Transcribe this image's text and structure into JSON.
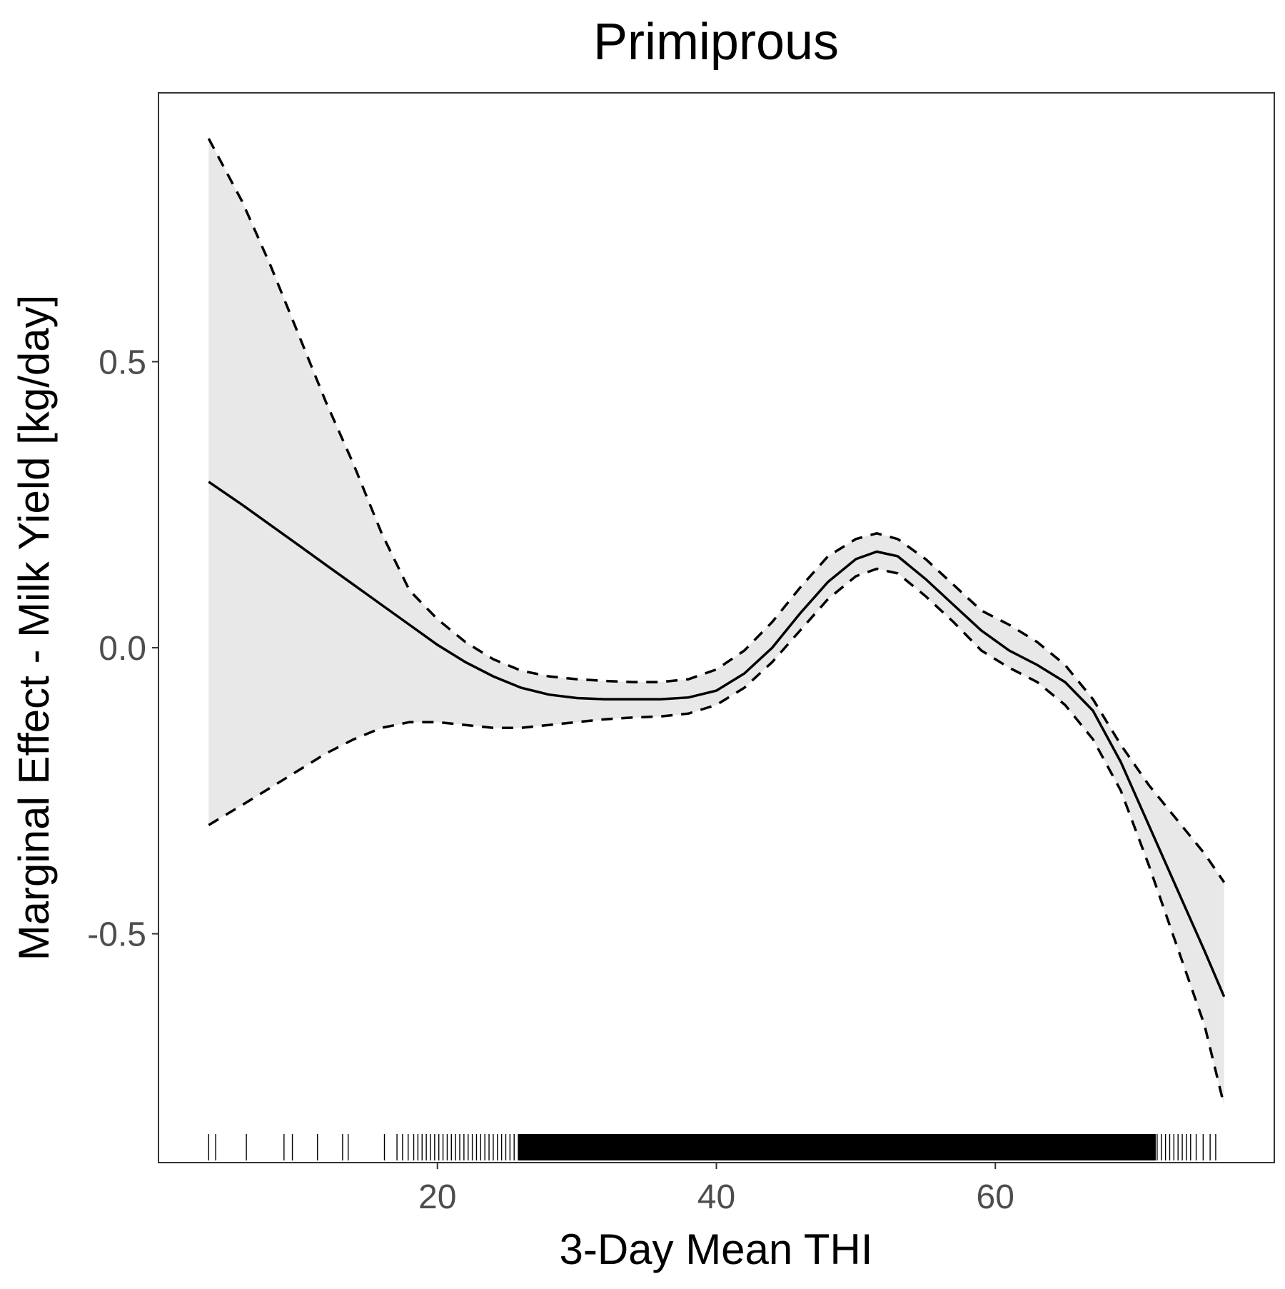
{
  "chart_data": {
    "type": "line",
    "title": "Primiprous",
    "xlabel": "3-Day Mean THI",
    "ylabel": "Marginal Effect - Milk Yield [kg/day]",
    "xlim": [
      0,
      80
    ],
    "ylim": [
      -0.9,
      0.97
    ],
    "x_ticks": [
      20,
      40,
      60
    ],
    "x_tick_labels": [
      "20",
      "40",
      "60"
    ],
    "y_ticks": [
      0.5,
      0.0,
      -0.5
    ],
    "y_tick_labels": [
      "0.5",
      "0.0",
      "-0.5"
    ],
    "grid": false,
    "legend": "none",
    "colors": {
      "line": "#000000",
      "ribbon": "#e8e8e8",
      "frame": "#333333",
      "tick_text": "#4d4d4d"
    },
    "series": [
      {
        "style": "solid",
        "x": [
          3.6,
          6,
          8,
          10,
          12,
          14,
          16,
          18,
          20,
          22,
          24,
          26,
          28,
          30,
          32,
          34,
          36,
          38,
          40,
          42,
          44,
          46,
          48,
          50,
          51.5,
          53,
          55,
          57,
          59,
          61,
          63,
          65,
          67,
          69,
          71,
          73,
          75,
          76.4
        ],
        "y": [
          0.29,
          0.25,
          0.215,
          0.18,
          0.145,
          0.11,
          0.075,
          0.04,
          0.005,
          -0.025,
          -0.05,
          -0.07,
          -0.082,
          -0.088,
          -0.09,
          -0.09,
          -0.09,
          -0.087,
          -0.075,
          -0.045,
          0.0,
          0.06,
          0.115,
          0.155,
          0.168,
          0.16,
          0.12,
          0.075,
          0.03,
          -0.005,
          -0.03,
          -0.06,
          -0.11,
          -0.2,
          -0.31,
          -0.42,
          -0.53,
          -0.61
        ]
      },
      {
        "style": "dashed",
        "x": [
          3.6,
          6,
          8,
          10,
          12,
          14,
          16,
          18,
          20,
          22,
          24,
          26,
          28,
          30,
          32,
          34,
          36,
          38,
          40,
          42,
          44,
          46,
          48,
          50,
          51.5,
          53,
          55,
          57,
          59,
          61,
          63,
          65,
          67,
          69,
          71,
          73,
          75,
          76.4
        ],
        "y": [
          0.89,
          0.78,
          0.67,
          0.55,
          0.43,
          0.32,
          0.2,
          0.1,
          0.05,
          0.01,
          -0.02,
          -0.04,
          -0.05,
          -0.055,
          -0.058,
          -0.06,
          -0.06,
          -0.055,
          -0.038,
          -0.005,
          0.045,
          0.105,
          0.16,
          0.19,
          0.2,
          0.19,
          0.155,
          0.11,
          0.065,
          0.04,
          0.01,
          -0.03,
          -0.09,
          -0.17,
          -0.24,
          -0.3,
          -0.36,
          -0.41
        ]
      },
      {
        "style": "dashed",
        "x": [
          3.6,
          6,
          8,
          10,
          12,
          14,
          16,
          18,
          20,
          22,
          24,
          26,
          28,
          30,
          32,
          34,
          36,
          38,
          40,
          42,
          44,
          46,
          48,
          50,
          51.5,
          53,
          55,
          57,
          59,
          61,
          63,
          65,
          67,
          69,
          71,
          73,
          75,
          76.4
        ],
        "y": [
          -0.31,
          -0.275,
          -0.245,
          -0.215,
          -0.185,
          -0.16,
          -0.14,
          -0.13,
          -0.13,
          -0.135,
          -0.14,
          -0.14,
          -0.135,
          -0.13,
          -0.125,
          -0.122,
          -0.12,
          -0.115,
          -0.1,
          -0.07,
          -0.025,
          0.03,
          0.085,
          0.125,
          0.138,
          0.13,
          0.09,
          0.045,
          -0.005,
          -0.035,
          -0.06,
          -0.1,
          -0.16,
          -0.25,
          -0.38,
          -0.52,
          -0.66,
          -0.8
        ]
      }
    ],
    "rug_x": [
      3.6,
      4.1,
      6.3,
      9.0,
      9.6,
      11.4,
      13.2,
      13.6,
      16.2,
      17.1,
      17.5,
      17.9,
      18.3,
      18.6,
      18.9,
      19.2,
      19.5,
      19.8,
      20.1,
      20.4,
      20.7,
      21.0,
      21.3,
      21.6,
      21.9,
      22.2,
      22.5,
      22.8,
      23.1,
      23.4,
      23.7,
      24.0,
      24.3,
      24.6,
      24.9,
      25.2,
      25.5,
      25.8,
      26.0,
      26.3,
      26.6,
      26.9,
      27.2,
      27.5,
      27.8,
      28.1,
      28.4,
      28.7,
      29.0,
      29.3,
      29.6,
      29.9,
      30.2,
      30.5,
      30.8,
      31.1,
      31.4,
      31.7,
      32.0,
      32.3,
      32.6,
      32.9,
      33.2,
      33.5,
      33.8,
      34.1,
      34.4,
      34.7,
      35.0,
      35.3,
      35.6,
      35.9,
      36.2,
      36.5,
      36.8,
      37.1,
      37.4,
      37.7,
      38.0,
      38.3,
      38.6,
      38.9,
      39.2,
      39.5,
      39.8,
      40.1,
      40.4,
      40.7,
      41.0,
      41.3,
      41.6,
      41.9,
      42.2,
      42.5,
      42.8,
      43.1,
      43.4,
      43.7,
      44.0,
      44.3,
      44.6,
      44.9,
      45.2,
      45.5,
      45.8,
      46.1,
      46.4,
      46.7,
      47.0,
      47.3,
      47.6,
      47.9,
      48.2,
      48.5,
      48.8,
      49.1,
      49.4,
      49.7,
      50.0,
      50.3,
      50.6,
      50.9,
      51.2,
      51.5,
      51.8,
      52.1,
      52.4,
      52.7,
      53.0,
      53.3,
      53.6,
      53.9,
      54.2,
      54.5,
      54.8,
      55.1,
      55.4,
      55.7,
      56.0,
      56.3,
      56.6,
      56.9,
      57.2,
      57.5,
      57.8,
      58.1,
      58.4,
      58.7,
      59.0,
      59.3,
      59.6,
      59.9,
      60.2,
      60.5,
      60.8,
      61.1,
      61.4,
      61.7,
      62.0,
      62.3,
      62.6,
      62.9,
      63.2,
      63.5,
      63.8,
      64.1,
      64.4,
      64.7,
      65.0,
      65.3,
      65.6,
      65.9,
      66.2,
      66.5,
      66.8,
      67.1,
      67.4,
      67.7,
      68.0,
      68.3,
      68.6,
      68.9,
      69.2,
      69.5,
      69.8,
      70.1,
      70.4,
      70.7,
      71.0,
      71.3,
      71.6,
      71.9,
      72.2,
      72.5,
      72.8,
      73.1,
      73.4,
      73.7,
      74.0,
      74.4,
      74.9,
      75.4,
      75.8
    ]
  }
}
